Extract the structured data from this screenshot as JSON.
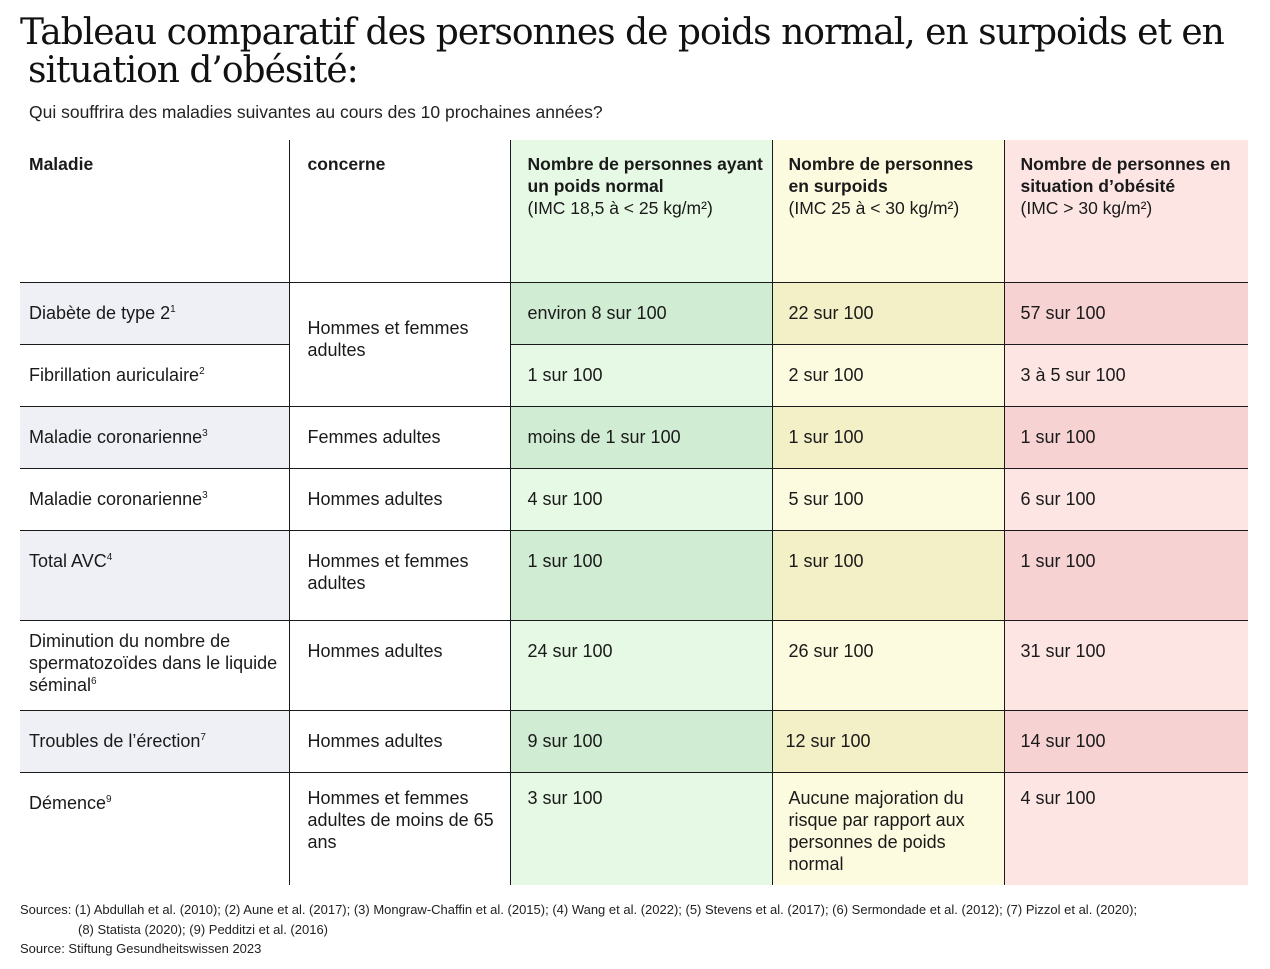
{
  "title": {
    "line1": "Tableau comparatif des personnes de poids normal, en surpoids et en",
    "line2": "situation d’obésité:"
  },
  "subtitle": "Qui souffrira des maladies suivantes au cours des 10 prochaines années?",
  "headers": {
    "disease": "Maladie",
    "concerns": "concerne",
    "normal": {
      "label": "Nombre de personnes ayant un poids normal",
      "imc": "(IMC 18,5 à < 25 kg/m²)"
    },
    "overweight": {
      "label": "Nombre de personnes en surpoids",
      "imc": "(IMC 25 à < 30 kg/m²)"
    },
    "obese": {
      "label": "Nombre de personnes en situation d’obésité",
      "imc": "(IMC > 30 kg/m²)"
    }
  },
  "rows": [
    {
      "disease": "Diabète de type 2",
      "ref": "1",
      "concerns": "Hommes et femmes adultes",
      "normal": "environ 8 sur 100",
      "overweight": "22 sur 100",
      "obese": "57 sur 100"
    },
    {
      "disease": "Fibrillation auriculaire",
      "ref": "2",
      "concerns": "",
      "normal": "1 sur 100",
      "overweight": "2 sur 100",
      "obese": "3 à 5 sur 100"
    },
    {
      "disease": "Maladie coronarienne",
      "ref": "3",
      "concerns": "Femmes adultes",
      "normal": "moins de 1 sur 100",
      "overweight": "1 sur 100",
      "obese": "1 sur 100"
    },
    {
      "disease": "Maladie coronarienne",
      "ref": "3",
      "concerns": "Hommes adultes",
      "normal": "4 sur 100",
      "overweight": "5 sur 100",
      "obese": "6 sur 100"
    },
    {
      "disease": "Total AVC",
      "ref": "4",
      "concerns": "Hommes et femmes adultes",
      "normal": "1 sur 100",
      "overweight": "1 sur 100",
      "obese": "1 sur 100"
    },
    {
      "disease": "Diminution du nombre de spermatozoïdes dans le liquide séminal",
      "ref": "6",
      "concerns": "Hommes adultes",
      "normal": "24 sur 100",
      "overweight": "26 sur 100",
      "obese": "31 sur 100"
    },
    {
      "disease": "Troubles de l’érection",
      "ref": "7",
      "concerns": "Hommes adultes",
      "normal": "9 sur 100",
      "overweight": "12 sur 100",
      "obese": "14 sur 100"
    },
    {
      "disease": "Démence",
      "ref": "9",
      "concerns": "Hommes et femmes adultes de moins de 65 ans",
      "normal": "3 sur 100",
      "overweight": "Aucune majoration du risque par rapport aux personnes de poids normal",
      "obese": "4 sur 100"
    }
  ],
  "sources": {
    "line1": "Sources: (1) Abdullah et al. (2010); (2) Aune et al. (2017); (3) Mongraw-Chaffin et al. (2015); (4) Wang et al. (2022); (5) Stevens et al. (2017); (6) Sermondade et al. (2012); (7) Pizzol et al. (2020);",
    "line2": "(8) Statista (2020); (9) Pedditzi et al. (2016)",
    "source": "Source: Stiftung Gesundheitswissen 2023"
  },
  "colors": {
    "green_light": "#e6f9e4",
    "green_dark": "#d0ecd3",
    "yellow_light": "#fdfbdf",
    "yellow_dark": "#f3efc6",
    "red_light": "#fde5e4",
    "red_dark": "#f6d3d2",
    "grey": "#eef0f6"
  }
}
